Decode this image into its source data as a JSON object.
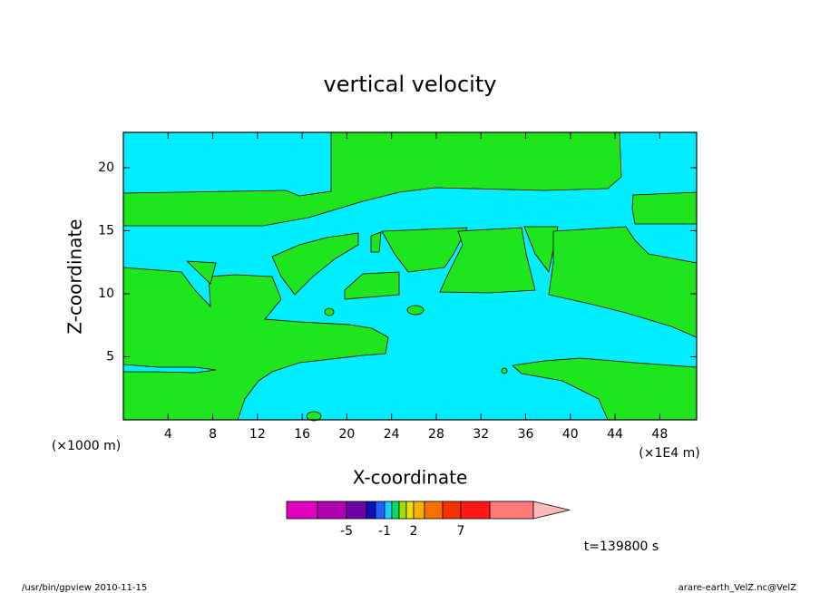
{
  "chart_data": {
    "type": "contour",
    "title": "vertical velocity",
    "xlabel": "X-coordinate",
    "ylabel": "Z-coordinate",
    "x_unit_left": "(×1000 m)",
    "x_unit_right": "(×1E4 m)",
    "xlim": [
      0,
      51.3
    ],
    "xticks": [
      4,
      8,
      12,
      16,
      20,
      24,
      28,
      32,
      36,
      40,
      44,
      48
    ],
    "ylim": [
      0,
      22.8
    ],
    "yticks": [
      5,
      10,
      15,
      20
    ],
    "colorbar": {
      "colors": [
        "#e000c0",
        "#b000b0",
        "#7000a8",
        "#1010b8",
        "#2060ff",
        "#10d0ff",
        "#00e060",
        "#a0e000",
        "#f0e000",
        "#f8b000",
        "#f87000",
        "#f83000",
        "#ff1818",
        "#ff7878",
        "#ffb8b8"
      ],
      "ticks": [
        -5,
        -1,
        2,
        7
      ]
    },
    "time_label": "t=139800 s",
    "footer_left": "/usr/bin/gpview  2010-11-15",
    "footer_right": "arare-earth_VelZ.nc@VelZ"
  }
}
